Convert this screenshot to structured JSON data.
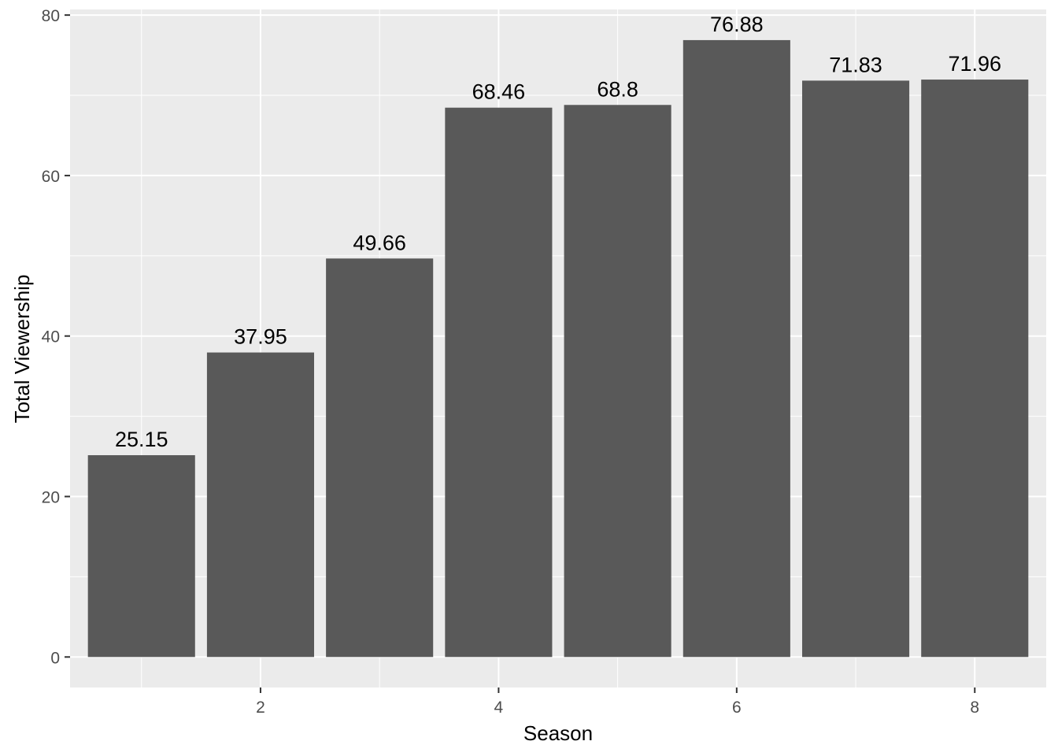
{
  "chart_data": {
    "type": "bar",
    "title": "",
    "xlabel": "Season",
    "ylabel": "Total Viewership",
    "x": [
      1,
      2,
      3,
      4,
      5,
      6,
      7,
      8
    ],
    "values": [
      25.15,
      37.95,
      49.66,
      68.46,
      68.8,
      76.88,
      71.83,
      71.96
    ],
    "data_labels": [
      "25.15",
      "37.95",
      "49.66",
      "68.46",
      "68.8",
      "76.88",
      "71.83",
      "71.96"
    ],
    "x_ticks": [
      2,
      4,
      6,
      8
    ],
    "y_ticks": [
      0,
      20,
      40,
      60,
      80
    ],
    "xlim": [
      0.4,
      8.6
    ],
    "ylim": [
      -3.8,
      80.7
    ],
    "grid": true,
    "legend": "none",
    "colors": {
      "bar": "#595959",
      "panel": "#ebebeb",
      "grid_major": "#ffffff",
      "tick_text": "#4d4d4d"
    }
  }
}
